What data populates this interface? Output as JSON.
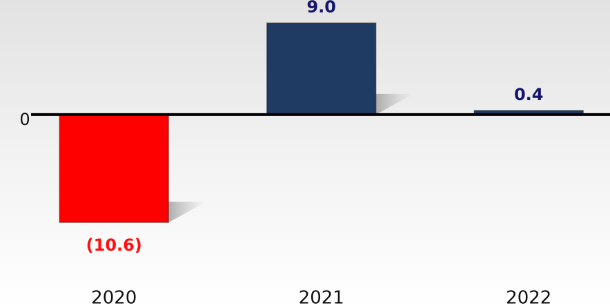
{
  "chart_data": {
    "type": "bar",
    "categories": [
      "2020",
      "2021",
      "2022"
    ],
    "values": [
      -10.6,
      9.0,
      0.4
    ],
    "value_labels": [
      "(10.6)",
      "9.0",
      "0.4"
    ],
    "colors": [
      "#ff0000",
      "#1f3b63",
      "#1f3b63"
    ],
    "label_colors": [
      "#ff1010",
      "#14146e",
      "#14146e"
    ],
    "ylim": [
      -19,
      11.25
    ],
    "yticks": [
      0
    ]
  }
}
